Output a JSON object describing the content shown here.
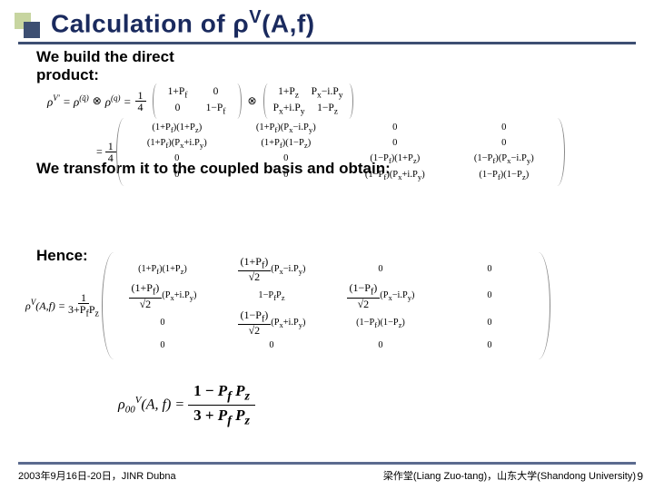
{
  "colors": {
    "title": "#1a2a5e",
    "rule": "#3d4f72",
    "sq_back": "#c7d5a0",
    "sq_front": "#3d4f72",
    "footer_rule": "#5b6b8f"
  },
  "title_html": "Calculation of ρ<sup>V</sup>(A,f)",
  "lead1_line1": "We build the direct",
  "lead1_line2": "product:",
  "lead2": "We transform it to the coupled basis and obtain:",
  "hence": "Hence:",
  "eq1": {
    "lhs": "ρ<sup>V'</sup> = ρ<sup>(q̄)</sup> ⊗ ρ<sup>(q)</sup> =",
    "factor": "1/4",
    "matA": [
      [
        "1+P_f",
        "0"
      ],
      [
        "0",
        "1−P_f"
      ]
    ],
    "matB": [
      [
        "1+P_z",
        "P_x−i.P_y"
      ],
      [
        "P_x+i.P_y",
        "1−P_z"
      ]
    ]
  },
  "eq1b": {
    "prefix": "= 1/4",
    "rows": [
      [
        "(1+P_f)(1+P_z)",
        "(1+P_f)(P_x−i.P_y)",
        "0",
        "0"
      ],
      [
        "(1+P_f)(P_x+i.P_y)",
        "(1+P_f)(1−P_z)",
        "0",
        "0"
      ],
      [
        "0",
        "0",
        "(1−P_f)(1+P_z)",
        "(1−P_f)(P_x−i.P_y)"
      ],
      [
        "0",
        "0",
        "(1−P_f)(P_x+i.P_y)",
        "(1−P_f)(1−P_z)"
      ]
    ]
  },
  "eq2": {
    "lhs": "ρ<sup>V</sup>(A,f) =",
    "factor_num": "1",
    "factor_den": "3+P_f P_z",
    "rows": [
      [
        "(1+P_f)(1+P_z)",
        "(1+P_f)/√2 (P_x−i.P_y)",
        "0",
        "0"
      ],
      [
        "(1+P_f)/√2 (P_x+i.P_y)",
        "1−P_f P_z",
        "(1−P_f)/√2 (P_x−i.P_y)",
        "0"
      ],
      [
        "0",
        "(1−P_f)/√2 (P_x+i.P_y)",
        "(1−P_f)(1−P_z)",
        "0"
      ],
      [
        "0",
        "0",
        "0",
        "0"
      ]
    ]
  },
  "eq3": {
    "lhs": "ρ<sub>00</sub><sup>V</sup>(A, f) =",
    "num": "1 − P_f P_z",
    "den": "3 + P_f P_z"
  },
  "footer": {
    "left": "2003年9月16日-20日，JINR Dubna",
    "right": "梁作堂(Liang Zuo-tang)，山东大学(Shandong University)",
    "page": "9"
  }
}
